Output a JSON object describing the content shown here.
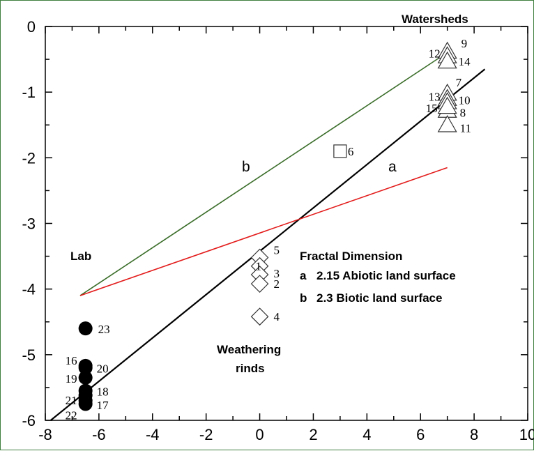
{
  "chart_data": {
    "type": "scatter",
    "title": "",
    "xlabel": "",
    "ylabel": "",
    "xlim": [
      -8,
      10
    ],
    "ylim": [
      -6,
      0
    ],
    "x_ticks": [
      -8,
      -6,
      -4,
      -2,
      0,
      2,
      4,
      6,
      8,
      10
    ],
    "y_ticks": [
      0,
      -1,
      -2,
      -3,
      -4,
      -5,
      -6
    ],
    "x_tick_labels": [
      "-8",
      "-6",
      "-4",
      "-2",
      "0",
      "2",
      "4",
      "6",
      "8",
      "10"
    ],
    "y_tick_labels": [
      "0",
      "-1",
      "-2",
      "-3",
      "-4",
      "-5",
      "-6"
    ],
    "grid": false,
    "groups": [
      {
        "name": "Lab",
        "marker": "filled-circle",
        "points": [
          {
            "label": "23",
            "x": -6.5,
            "y": -4.6
          },
          {
            "label": "16",
            "x": -6.5,
            "y": -5.17
          },
          {
            "label": "20",
            "x": -6.5,
            "y": -5.2
          },
          {
            "label": "19",
            "x": -6.5,
            "y": -5.35
          },
          {
            "label": "18",
            "x": -6.5,
            "y": -5.55
          },
          {
            "label": "21",
            "x": -6.5,
            "y": -5.62
          },
          {
            "label": "17",
            "x": -6.5,
            "y": -5.7
          },
          {
            "label": "22",
            "x": -6.5,
            "y": -5.75
          }
        ]
      },
      {
        "name": "Weathering rinds",
        "marker": "diamond",
        "points": [
          {
            "label": "5",
            "x": 0,
            "y": -3.52
          },
          {
            "label": "1",
            "x": 0,
            "y": -3.65
          },
          {
            "label": "3",
            "x": 0,
            "y": -3.78
          },
          {
            "label": "2",
            "x": 0,
            "y": -3.92
          },
          {
            "label": "4",
            "x": 0,
            "y": -4.42
          }
        ]
      },
      {
        "name": "",
        "marker": "square",
        "points": [
          {
            "label": "6",
            "x": 3,
            "y": -1.9
          }
        ]
      },
      {
        "name": "Watersheds",
        "marker": "triangle",
        "points": [
          {
            "label": "9",
            "x": 7,
            "y": -0.38
          },
          {
            "label": "12",
            "x": 7,
            "y": -0.45
          },
          {
            "label": "14",
            "x": 7,
            "y": -0.53
          },
          {
            "label": "7",
            "x": 7,
            "y": -1.02
          },
          {
            "label": "10",
            "x": 7,
            "y": -1.1
          },
          {
            "label": "13",
            "x": 7,
            "y": -1.15
          },
          {
            "label": "8",
            "x": 7,
            "y": -1.28
          },
          {
            "label": "15",
            "x": 7,
            "y": -1.22
          },
          {
            "label": "11",
            "x": 7,
            "y": -1.5
          }
        ]
      }
    ],
    "lines": [
      {
        "name": "a",
        "color": "#000000",
        "x": [
          -7.8,
          8.4
        ],
        "y": [
          -6.0,
          -0.65
        ]
      },
      {
        "name": "b",
        "color": "#3b6e2a",
        "x": [
          -6.7,
          6.8
        ],
        "y": [
          -4.1,
          -0.45
        ]
      },
      {
        "name": "",
        "color": "#e31b1b",
        "x": [
          -6.7,
          7.0
        ],
        "y": [
          -4.1,
          -2.15
        ]
      }
    ],
    "line_labels": {
      "a": "a",
      "b": "b"
    },
    "annotations": {
      "watersheds": "Watersheds",
      "lab": "Lab",
      "weathering_line1": "Weathering",
      "weathering_line2": "rinds",
      "fractal_title": "Fractal Dimension",
      "legend_a_letter": "a",
      "legend_a_text": "2.15 Abiotic land surface",
      "legend_a_color": "#e31b1b",
      "legend_b_letter": "b",
      "legend_b_text": "2.3 Biotic land surface",
      "legend_b_color": "#22a84a"
    }
  }
}
